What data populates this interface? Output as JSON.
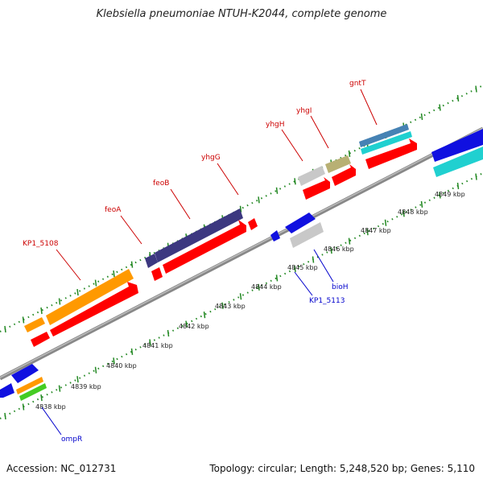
{
  "title": "Klebsiella pneumoniae NTUH-K2044, complete genome",
  "accession": "Accession: NC_012731",
  "summary": "Topology: circular; Length: 5,248,520 bp; Genes: 5,110",
  "kbp_labels": [
    "4838 kbp",
    "4839 kbp",
    "4840 kbp",
    "4841 kbp",
    "4842 kbp",
    "4843 kbp",
    "4844 kbp",
    "4845 kbp",
    "4846 kbp",
    "4847 kbp",
    "4848 kbp",
    "4849 kbp"
  ],
  "gene_labels": {
    "kp1_5108": "KP1_5108",
    "feoA": "feoA",
    "feoB": "feoB",
    "yhgG": "yhgG",
    "yhgH": "yhgH",
    "yhgI": "yhgI",
    "gntT": "gntT",
    "kp1_5113": "KP1_5113",
    "bioH": "bioH",
    "ompR": "ompR"
  },
  "colors": {
    "red": "#ff0000",
    "orange": "#ff9900",
    "navy": "#3c3880",
    "blue": "#1010e0",
    "gray": "#c8c8c8",
    "olive": "#b8b074",
    "cyan": "#20d0d0",
    "steel": "#4682b4",
    "green": "#44cc22",
    "tick": "#228822",
    "label_red": "#cc0000",
    "label_blue": "#0000cc"
  }
}
